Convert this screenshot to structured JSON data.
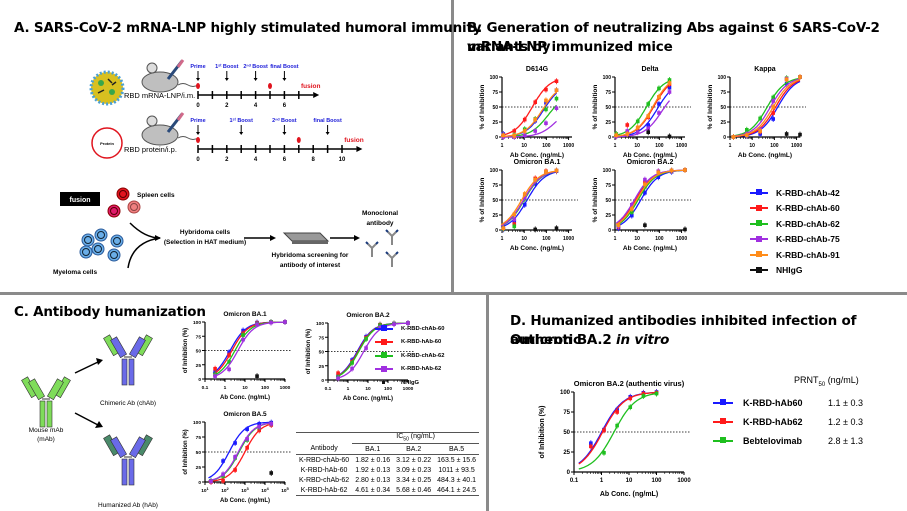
{
  "panels": {
    "A": {
      "title": "A. SARS-CoV-2 mRNA-LNP highly stimulated humoral immunity",
      "schedule_mrna": {
        "route_label": "RBD mRNA-LNP/i.m.",
        "events": [
          {
            "label": "Prime",
            "week": 0
          },
          {
            "label": "1st Boost",
            "week": 2
          },
          {
            "label": "2nd Boost",
            "week": 4
          },
          {
            "label": "final Boost",
            "week": 6
          }
        ],
        "bleeds_weeks": [
          0,
          5
        ],
        "fusion_label": "fusion",
        "ticks": [
          "0",
          "2",
          "4",
          "6"
        ],
        "max_week": 8
      },
      "schedule_protein": {
        "route_label": "RBD protein/i.p.",
        "particle_label": "Protein",
        "events": [
          {
            "label": "Prime",
            "week": 0
          },
          {
            "label": "1st Boost",
            "week": 3
          },
          {
            "label": "2nd Boost",
            "week": 6
          },
          {
            "label": "final Boost",
            "week": 9
          }
        ],
        "bleeds_weeks": [
          0,
          7
        ],
        "fusion_label": "fusion",
        "ticks": [
          "0",
          "2",
          "4",
          "6",
          "8",
          "10"
        ],
        "max_week": 11
      },
      "workflow": {
        "fusion_box": "fusion",
        "spleen_cells": "Spleen cells",
        "myeloma_cells": "Myeloma cells",
        "hybridoma_line1": "Hybridoma cells",
        "hybridoma_line2": "(Selection in HAT medium)",
        "screening_line1": "Hybridoma screening for",
        "screening_line2": "antibody of interest",
        "mab_line1": "Monoclonal",
        "mab_line2": "antibody"
      }
    },
    "B": {
      "title_line1": "B. Generation of neutralizing Abs against 6 SARS-CoV-2 variants by",
      "title_line2": "mRNA-LNP immunized mice"
    },
    "C": {
      "title": "C. Antibody humanization",
      "mouse_label_1": "Mouse mAb",
      "mouse_label_2": "(mAb)",
      "chimeric_label": "Chimeric Ab (chAb)",
      "humanized_label": "Humanized Ab (hAb)",
      "table": {
        "group_header": "IC50 (ng/mL)",
        "columns": [
          "Antibody",
          "BA.1",
          "BA.2",
          "BA.5"
        ],
        "rows": [
          [
            "K-RBD-chAb-60",
            "1.82 ± 0.16",
            "3.12 ± 0.22",
            "163.5 ± 15.6"
          ],
          [
            "K-RBD-hAb-60",
            "1.92 ± 0.13",
            "3.09 ± 0.23",
            "1011 ± 93.5"
          ],
          [
            "K-RBD-chAb-62",
            "2.80 ± 0.13",
            "3.34 ± 0.25",
            "484.3 ± 40.1"
          ],
          [
            "K-RBD-hAb-62",
            "4.61 ± 0.34",
            "5.68 ± 0.46",
            "464.1 ± 24.5"
          ]
        ]
      }
    },
    "D": {
      "title_line1": "D. Humanized antibodies inhibited infection of authentic",
      "title_line2_plain": "Omicron BA.2 ",
      "title_line2_italic": "in vitro",
      "prnt_header": "PRNT50 (ng/mL)",
      "prnt_rows": [
        {
          "name": "K-RBD-hAb60",
          "value": "1.1 ± 0.3"
        },
        {
          "name": "K-RBD-hAb62",
          "value": "1.2 ± 0.3"
        },
        {
          "name": "Bebtelovimab",
          "value": "2.8 ± 1.3"
        }
      ]
    }
  },
  "legends": {
    "B": [
      {
        "name": "K-RBD-chAb-42",
        "color": "#1a1aff",
        "marker": "square"
      },
      {
        "name": "K-RBD-chAb-60",
        "color": "#ff1a1a",
        "marker": "triangle"
      },
      {
        "name": "K-RBD-chAb-62",
        "color": "#1fbf1f",
        "marker": "diamond"
      },
      {
        "name": "K-RBD-chAb-75",
        "color": "#a030e0",
        "marker": "circle"
      },
      {
        "name": "K-RBD-chAb-91",
        "color": "#ff8c1a",
        "marker": "cross"
      },
      {
        "name": "NHIgG",
        "color": "#111111",
        "marker": "square"
      }
    ],
    "C": [
      {
        "name": "K-RBD-chAb-60",
        "color": "#1a1aff"
      },
      {
        "name": "K-RBD-hAb-60",
        "color": "#ff1a1a"
      },
      {
        "name": "K-RBD-chAb-62",
        "color": "#1fbf1f"
      },
      {
        "name": "K-RBD-hAb-62",
        "color": "#a030e0"
      },
      {
        "name": "NHIgG",
        "color": "#111111"
      }
    ]
  },
  "chart_data": [
    {
      "id": "B-D614G",
      "type": "line",
      "title": "D614G",
      "xlabel": "Ab Conc. (ng/mL)",
      "ylabel": "% of Inhibition",
      "xscale": "log",
      "xlim": [
        0.7,
        1000
      ],
      "ylim": [
        0,
        100
      ],
      "xticks": [
        "1",
        "10",
        "100",
        "1000"
      ],
      "yticks": [
        "0",
        "25",
        "50",
        "75",
        "100"
      ],
      "reference_line_y": 50,
      "x": [
        0.8,
        2.5,
        7.4,
        22,
        67,
        200
      ],
      "series": [
        {
          "name": "K-RBD-chAb-42",
          "values": [
            5,
            2,
            3,
            27,
            57,
            78
          ]
        },
        {
          "name": "K-RBD-chAb-60",
          "values": [
            2,
            10,
            29,
            58,
            79,
            93
          ]
        },
        {
          "name": "K-RBD-chAb-62",
          "values": [
            1,
            3,
            13,
            30,
            46,
            64
          ]
        },
        {
          "name": "K-RBD-chAb-75",
          "values": [
            0,
            0,
            3,
            10,
            23,
            48
          ]
        },
        {
          "name": "K-RBD-chAb-91",
          "values": [
            3,
            2,
            10,
            29,
            61,
            78
          ]
        }
      ]
    },
    {
      "id": "B-Delta",
      "type": "line",
      "title": "Delta",
      "xlabel": "Ab Conc. (ng/mL)",
      "ylabel": "% of Inhibition",
      "xscale": "log",
      "xlim": [
        0.7,
        1000
      ],
      "ylim": [
        0,
        100
      ],
      "xticks": [
        "1",
        "10",
        "100",
        "1000"
      ],
      "yticks": [
        "0",
        "25",
        "50",
        "75",
        "100"
      ],
      "reference_line_y": 50,
      "x": [
        0.8,
        2.5,
        7.4,
        22,
        67,
        200
      ],
      "series": [
        {
          "name": "K-RBD-chAb-42",
          "values": [
            2,
            5,
            10,
            20,
            55,
            82
          ]
        },
        {
          "name": "K-RBD-chAb-60",
          "values": [
            2,
            20,
            15,
            33,
            66,
            88
          ]
        },
        {
          "name": "K-RBD-chAb-62",
          "values": [
            5,
            8,
            26,
            55,
            81,
            95
          ]
        },
        {
          "name": "K-RBD-chAb-75",
          "values": [
            1,
            10,
            8,
            14,
            40,
            75
          ]
        },
        {
          "name": "K-RBD-chAb-91",
          "values": [
            3,
            5,
            16,
            35,
            67,
            90
          ]
        },
        {
          "name": "NHIgG",
          "values": [
            null,
            null,
            null,
            8,
            null,
            1
          ]
        }
      ]
    },
    {
      "id": "B-Kappa",
      "type": "line",
      "title": "Kappa",
      "xlabel": "Ab Conc. (ng/mL)",
      "ylabel": "% of Inhibition",
      "xscale": "log",
      "xlim": [
        0.7,
        1000
      ],
      "ylim": [
        0,
        100
      ],
      "xticks": [
        "1",
        "10",
        "100",
        "1000"
      ],
      "yticks": [
        "0",
        "25",
        "50",
        "75",
        "100"
      ],
      "reference_line_y": 50,
      "x": [
        1,
        4,
        16,
        62,
        250,
        1000
      ],
      "series": [
        {
          "name": "K-RBD-chAb-42",
          "values": [
            0,
            2,
            5,
            30,
            89,
            100
          ]
        },
        {
          "name": "K-RBD-chAb-60",
          "values": [
            0,
            3,
            9,
            40,
            96,
            100
          ]
        },
        {
          "name": "K-RBD-chAb-62",
          "values": [
            0,
            12,
            31,
            66,
            98,
            100
          ]
        },
        {
          "name": "K-RBD-chAb-75",
          "values": [
            0,
            5,
            13,
            60,
            97,
            100
          ]
        },
        {
          "name": "K-RBD-chAb-91",
          "values": [
            0,
            3,
            10,
            50,
            96,
            100
          ]
        },
        {
          "name": "NHIgG",
          "values": [
            null,
            null,
            null,
            null,
            5,
            4
          ]
        }
      ]
    },
    {
      "id": "B-OmicronBA1",
      "type": "line",
      "title": "Omicron BA.1",
      "xlabel": "Ab Conc. (ng/mL)",
      "ylabel": "% of Inhibition",
      "xscale": "log",
      "xlim": [
        0.7,
        1000
      ],
      "ylim": [
        0,
        100
      ],
      "xticks": [
        "1",
        "10",
        "100",
        "1000"
      ],
      "yticks": [
        "0",
        "25",
        "50",
        "75",
        "100"
      ],
      "reference_line_y": 50,
      "x": [
        0.8,
        2.5,
        7.4,
        22,
        67,
        200
      ],
      "series": [
        {
          "name": "K-RBD-chAb-42",
          "values": [
            1,
            15,
            42,
            77,
            94,
            98
          ]
        },
        {
          "name": "K-RBD-chAb-60",
          "values": [
            2,
            10,
            55,
            86,
            98,
            99
          ]
        },
        {
          "name": "K-RBD-chAb-62",
          "values": [
            2,
            6,
            52,
            83,
            96,
            99
          ]
        },
        {
          "name": "K-RBD-chAb-75",
          "values": [
            3,
            18,
            54,
            82,
            96,
            99
          ]
        },
        {
          "name": "K-RBD-chAb-91",
          "values": [
            3,
            26,
            60,
            84,
            97,
            99
          ]
        },
        {
          "name": "NHIgG",
          "values": [
            null,
            null,
            null,
            1,
            null,
            3
          ]
        }
      ]
    },
    {
      "id": "B-OmicronBA2",
      "type": "line",
      "title": "Omicron BA.2",
      "xlabel": "Ab Conc. (ng/mL)",
      "ylabel": "% of Inhibition",
      "xscale": "log",
      "xlim": [
        0.7,
        1000
      ],
      "ylim": [
        0,
        100
      ],
      "xticks": [
        "1",
        "10",
        "100",
        "1000"
      ],
      "yticks": [
        "0",
        "25",
        "50",
        "75",
        "100"
      ],
      "reference_line_y": 50,
      "x": [
        1,
        4,
        15.6,
        62.5,
        250,
        1000
      ],
      "series": [
        {
          "name": "K-RBD-chAb-42",
          "values": [
            3,
            24,
            62,
            88,
            97,
            100
          ]
        },
        {
          "name": "K-RBD-chAb-60",
          "values": [
            5,
            38,
            80,
            97,
            99,
            100
          ]
        },
        {
          "name": "K-RBD-chAb-62",
          "values": [
            7,
            30,
            72,
            95,
            99,
            100
          ]
        },
        {
          "name": "K-RBD-chAb-75",
          "values": [
            6,
            42,
            84,
            98,
            99,
            100
          ]
        },
        {
          "name": "K-RBD-chAb-91",
          "values": [
            8,
            35,
            76,
            96,
            99,
            100
          ]
        },
        {
          "name": "NHIgG",
          "values": [
            null,
            null,
            8,
            null,
            null,
            1
          ]
        }
      ]
    },
    {
      "id": "C-OmicronBA1",
      "type": "line",
      "title": "Omicron BA.1",
      "xlabel": "Ab Conc. (ng/mL)",
      "ylabel": "of Inhibition (%)",
      "xscale": "log",
      "xlim": [
        0.1,
        1000
      ],
      "ylim": [
        0,
        100
      ],
      "xticks": [
        "0.1",
        "1",
        "10",
        "100",
        "1000"
      ],
      "yticks": [
        "0",
        "25",
        "50",
        "75",
        "100"
      ],
      "reference_line_y": 50,
      "x": [
        0.32,
        1.6,
        8,
        40,
        200,
        1000
      ],
      "series": [
        {
          "name": "K-RBD-chAb-60",
          "values": [
            12,
            47,
            85,
            99,
            100,
            100
          ]
        },
        {
          "name": "K-RBD-hAb-60",
          "values": [
            18,
            42,
            80,
            98,
            100,
            100
          ]
        },
        {
          "name": "K-RBD-chAb-62",
          "values": [
            8,
            30,
            77,
            97,
            100,
            100
          ]
        },
        {
          "name": "K-RBD-hAb-62",
          "values": [
            5,
            17,
            69,
            96,
            99,
            100
          ]
        },
        {
          "name": "NHIgG",
          "values": [
            null,
            null,
            null,
            5,
            null,
            null
          ]
        }
      ]
    },
    {
      "id": "C-OmicronBA2",
      "type": "line",
      "title": "Omicron BA.2",
      "xlabel": "Ab Conc. (ng/mL)",
      "ylabel": "of Inhibition (%)",
      "xscale": "log",
      "xlim": [
        0.1,
        1000
      ],
      "ylim": [
        0,
        100
      ],
      "xticks": [
        "0.1",
        "1",
        "10",
        "100",
        "1000"
      ],
      "yticks": [
        "0",
        "25",
        "50",
        "75",
        "100"
      ],
      "reference_line_y": 50,
      "x": [
        0.32,
        1.6,
        8,
        40,
        200,
        1000
      ],
      "series": [
        {
          "name": "K-RBD-chAb-60",
          "values": [
            8,
            35,
            76,
            97,
            99,
            100
          ]
        },
        {
          "name": "K-RBD-hAb-60",
          "values": [
            12,
            32,
            74,
            97,
            99,
            100
          ]
        },
        {
          "name": "K-RBD-chAb-62",
          "values": [
            5,
            30,
            72,
            96,
            99,
            100
          ]
        },
        {
          "name": "K-RBD-hAb-62",
          "values": [
            3,
            20,
            56,
            92,
            98,
            100
          ]
        }
      ]
    },
    {
      "id": "C-OmicronBA5",
      "type": "line",
      "title": "Omicron BA.5",
      "xlabel": "Ab Conc. (ng/mL)",
      "ylabel": "of Inhibition (%)",
      "xscale": "log",
      "xlim": [
        10,
        100000
      ],
      "ylim": [
        0,
        100
      ],
      "xticks": [
        "10^1",
        "10^2",
        "10^3",
        "10^4",
        "10^5"
      ],
      "yticks": [
        "0",
        "25",
        "50",
        "75",
        "100"
      ],
      "reference_line_y": 50,
      "x": [
        20,
        80,
        320,
        1280,
        5120,
        20480
      ],
      "series": [
        {
          "name": "K-RBD-chAb-60",
          "values": [
            2,
            35,
            65,
            88,
            97,
            99
          ]
        },
        {
          "name": "K-RBD-hAb-60",
          "values": [
            0,
            2,
            20,
            57,
            86,
            95
          ]
        },
        {
          "name": "K-RBD-chAb-62",
          "values": [
            2,
            10,
            40,
            70,
            91,
            97
          ]
        },
        {
          "name": "K-RBD-hAb-62",
          "values": [
            1,
            13,
            42,
            72,
            92,
            97
          ]
        },
        {
          "name": "NHIgG",
          "values": [
            null,
            null,
            null,
            null,
            null,
            15
          ]
        }
      ]
    },
    {
      "id": "D-OmicronBA2-authentic",
      "type": "line",
      "title": "Omicron BA.2 (authentic virus)",
      "xlabel": "Ab Conc. (ng/mL)",
      "ylabel": "of Inhibition (%)",
      "xscale": "log",
      "xlim": [
        0.1,
        1000
      ],
      "ylim": [
        0,
        100
      ],
      "xticks": [
        "0.1",
        "1",
        "10",
        "100",
        "1000"
      ],
      "yticks": [
        "0",
        "25",
        "50",
        "75",
        "100"
      ],
      "reference_line_y": 50,
      "x": [
        0.41,
        1.23,
        3.7,
        11.1,
        33.3,
        100
      ],
      "series": [
        {
          "name": "K-RBD-hAb60",
          "values": [
            36,
            53,
            78,
            94,
            99,
            100
          ]
        },
        {
          "name": "K-RBD-hAb62",
          "values": [
            32,
            52,
            75,
            92,
            98,
            99
          ]
        },
        {
          "name": "Bebtelovimab",
          "values": [
            null,
            24,
            58,
            81,
            95,
            98
          ]
        }
      ],
      "legend": [
        "K-RBD-hAb60",
        "K-RBD-hAb62",
        "Bebtelovimab"
      ]
    }
  ]
}
